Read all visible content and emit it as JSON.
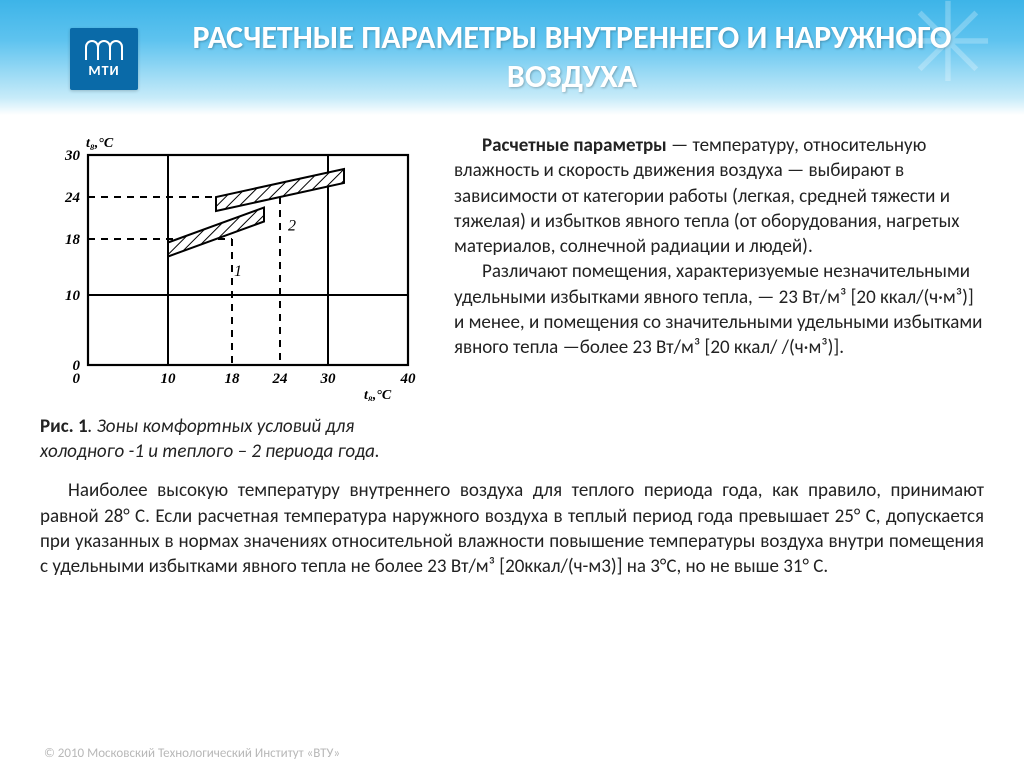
{
  "logo": {
    "text": "МТИ"
  },
  "title": "РАСЧЕТНЫЕ  ПАРАМЕТРЫ  ВНУТРЕННЕГО И НАРУЖНОГО ВОЗДУХА",
  "figure": {
    "axis_y_label": "t₈,°C",
    "axis_x_label": "t₈,°C",
    "y_ticks": [
      {
        "val": "30",
        "y": 30
      },
      {
        "val": "24",
        "y": 24
      },
      {
        "val": "18",
        "y": 18
      },
      {
        "val": "10",
        "y": 10
      },
      {
        "val": "0",
        "y": 0
      }
    ],
    "x_ticks": [
      {
        "val": "10",
        "x": 10
      },
      {
        "val": "18",
        "x": 18
      },
      {
        "val": "24",
        "x": 24
      },
      {
        "val": "30",
        "x": 30
      },
      {
        "val": "40",
        "x": 40
      }
    ],
    "xlim": [
      0,
      40
    ],
    "ylim": [
      0,
      30
    ],
    "zones": [
      {
        "label": "1",
        "points": [
          [
            10,
            15.5
          ],
          [
            22,
            20.5
          ],
          [
            22,
            22.5
          ],
          [
            10,
            17.5
          ]
        ]
      },
      {
        "label": "2",
        "points": [
          [
            16,
            22
          ],
          [
            32,
            26
          ],
          [
            32,
            28
          ],
          [
            16,
            24
          ]
        ]
      }
    ],
    "grid_color": "#000",
    "hatch": true
  },
  "caption": {
    "prefix": "Рис. 1",
    "text": ". Зоны комфортных условий для холодного -1 и теплого – 2 периода года."
  },
  "paragraphs": {
    "p1_lead": "Расчетные параметры",
    "p1": " — температуру, относительную влажность и скорость движения воздуха — выбирают в зависимости от категории работы (легкая, средней тяжести и тяжелая) и избытков явного тепла (от оборудования, нагретых материалов, солнечной радиации и людей).",
    "p2": "Различают помещения, характеризуемые незначительными удельными избытками явного тепла, — 23 Вт/м³ [20 ккал/(ч·м³)] и менее, и помещения со значительными удельными избытками явного тепла —более 23 Вт/м³ [20 ккал/ /(ч·м³)].",
    "bottom": "Наиболее высокую температуру внутреннего воздуха для теплого периода года, как правило, принимают равной 28° С. Если расчетная температура наружного воздуха в теплый период года превышает 25° С, допускается при указанных в нормах значениях относительной влажности повышение температуры воздуха внутри помещения с удельными избытками явного тепла не более 23 Вт/м³ [20ккал/(ч-м3)] на 3°С, но не выше 31° С."
  },
  "footer": "© 2010 Московский Технологический Институт «ВТУ»"
}
